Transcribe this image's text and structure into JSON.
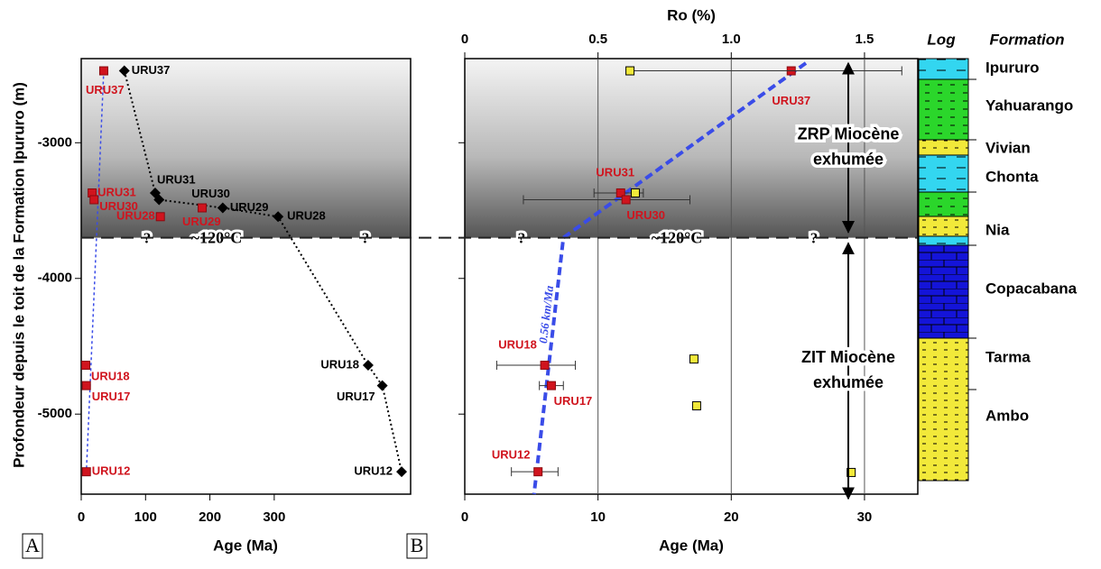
{
  "chart_data": [
    {
      "type": "scatter",
      "panel_label": "A",
      "xlabel": "Age (Ma)",
      "ylabel": "Profondeur depuis le toit de la Formation Ipururo (m)",
      "xlim": [
        0,
        512
      ],
      "xticks": [
        0,
        100,
        200,
        300
      ],
      "ylim": [
        -5590,
        -2380
      ],
      "yticks": [
        -3000,
        -4000,
        -5000
      ],
      "threshold": {
        "y": -3700,
        "label": "~120°C",
        "marks": [
          "?",
          "?"
        ]
      },
      "series": [
        {
          "color": "#000000",
          "marker": "diamond",
          "connect": true,
          "labels": [
            "URU37",
            "URU31",
            "URU30",
            "URU29",
            "URU28",
            "URU18",
            "URU17",
            "URU12"
          ],
          "x": [
            67,
            115,
            121,
            220,
            306,
            446,
            468,
            498
          ],
          "y": [
            -2470,
            -3370,
            -3420,
            -3480,
            -3545,
            -4640,
            -4790,
            -5425
          ]
        },
        {
          "color": "#d0141e",
          "marker": "square",
          "labels": [
            "URU37",
            "URU31",
            "URU30",
            "URU28",
            "URU29",
            "URU18",
            "URU17",
            "URU12"
          ],
          "x": [
            35,
            17,
            20,
            123,
            188,
            7,
            8,
            8
          ],
          "y": [
            -2470,
            -3370,
            -3420,
            -3545,
            -3480,
            -4640,
            -4790,
            -5425
          ]
        }
      ],
      "trends": [
        {
          "color": "#3a4ce8",
          "x": [
            35,
            8
          ],
          "y": [
            -2470,
            -5425
          ]
        }
      ]
    },
    {
      "type": "scatter",
      "panel_label": "B",
      "xlabel": "Age (Ma)",
      "x2label": "Ro (%)",
      "xlim": [
        0,
        34
      ],
      "xticks": [
        0,
        10,
        20,
        30
      ],
      "grid": true,
      "x2lim": [
        0,
        1.7
      ],
      "x2ticks": [
        0,
        0.5,
        {
          "value": 1,
          "label": "1.0"
        },
        1.5
      ],
      "ylim": [
        -5590,
        -2380
      ],
      "yticks": [
        -3000,
        -4000,
        -5000
      ],
      "threshold": {
        "y": -3700,
        "label": "~120°C",
        "marks": [
          "?",
          "?"
        ]
      },
      "series": [
        {
          "color": "#d0141e",
          "marker": "square",
          "labels": [
            "URU37",
            "URU31",
            "URU30",
            "URU18",
            "URU17",
            "URU12"
          ],
          "x": [
            24.5,
            11.7,
            12.1,
            6.0,
            6.5,
            5.5
          ],
          "y": [
            -2470,
            -3370,
            -3420,
            -4640,
            -4790,
            -5425
          ],
          "x_low": [
            null,
            9.7,
            4.4,
            2.4,
            5.6,
            3.5
          ],
          "x_high": [
            null,
            13.4,
            16.9,
            8.3,
            7.4,
            7.0
          ]
        },
        {
          "color": "#f2e93a",
          "marker": "square",
          "axis": "x2",
          "x": [
            0.62,
            0.64,
            0.86,
            0.87,
            1.45
          ],
          "y": [
            -2470,
            -3370,
            -4594,
            -4939,
            -5430
          ],
          "x_low": [
            null,
            null,
            null,
            null,
            null
          ],
          "x_high": [
            1.64,
            null,
            null,
            null,
            null
          ]
        }
      ],
      "trends": [
        {
          "color": "#3a4ce8",
          "x": [
            25.6,
            7.4,
            5.2
          ],
          "y": [
            -2413,
            -3700,
            -5590
          ],
          "label": "0.56 km/Ma"
        }
      ],
      "zones": [
        {
          "lines": [
            "ZRP Miocène",
            "exhumée"
          ]
        },
        {
          "lines": [
            "ZIT Miocène",
            "exhumée"
          ]
        }
      ]
    }
  ],
  "log": {
    "title": "Log",
    "formation_header": "Formation",
    "formations": [
      "Ipururo",
      "Yahuarango",
      "Vivian",
      "Chonta",
      "Nia",
      "Copacabana",
      "Tarma",
      "Ambo"
    ]
  }
}
